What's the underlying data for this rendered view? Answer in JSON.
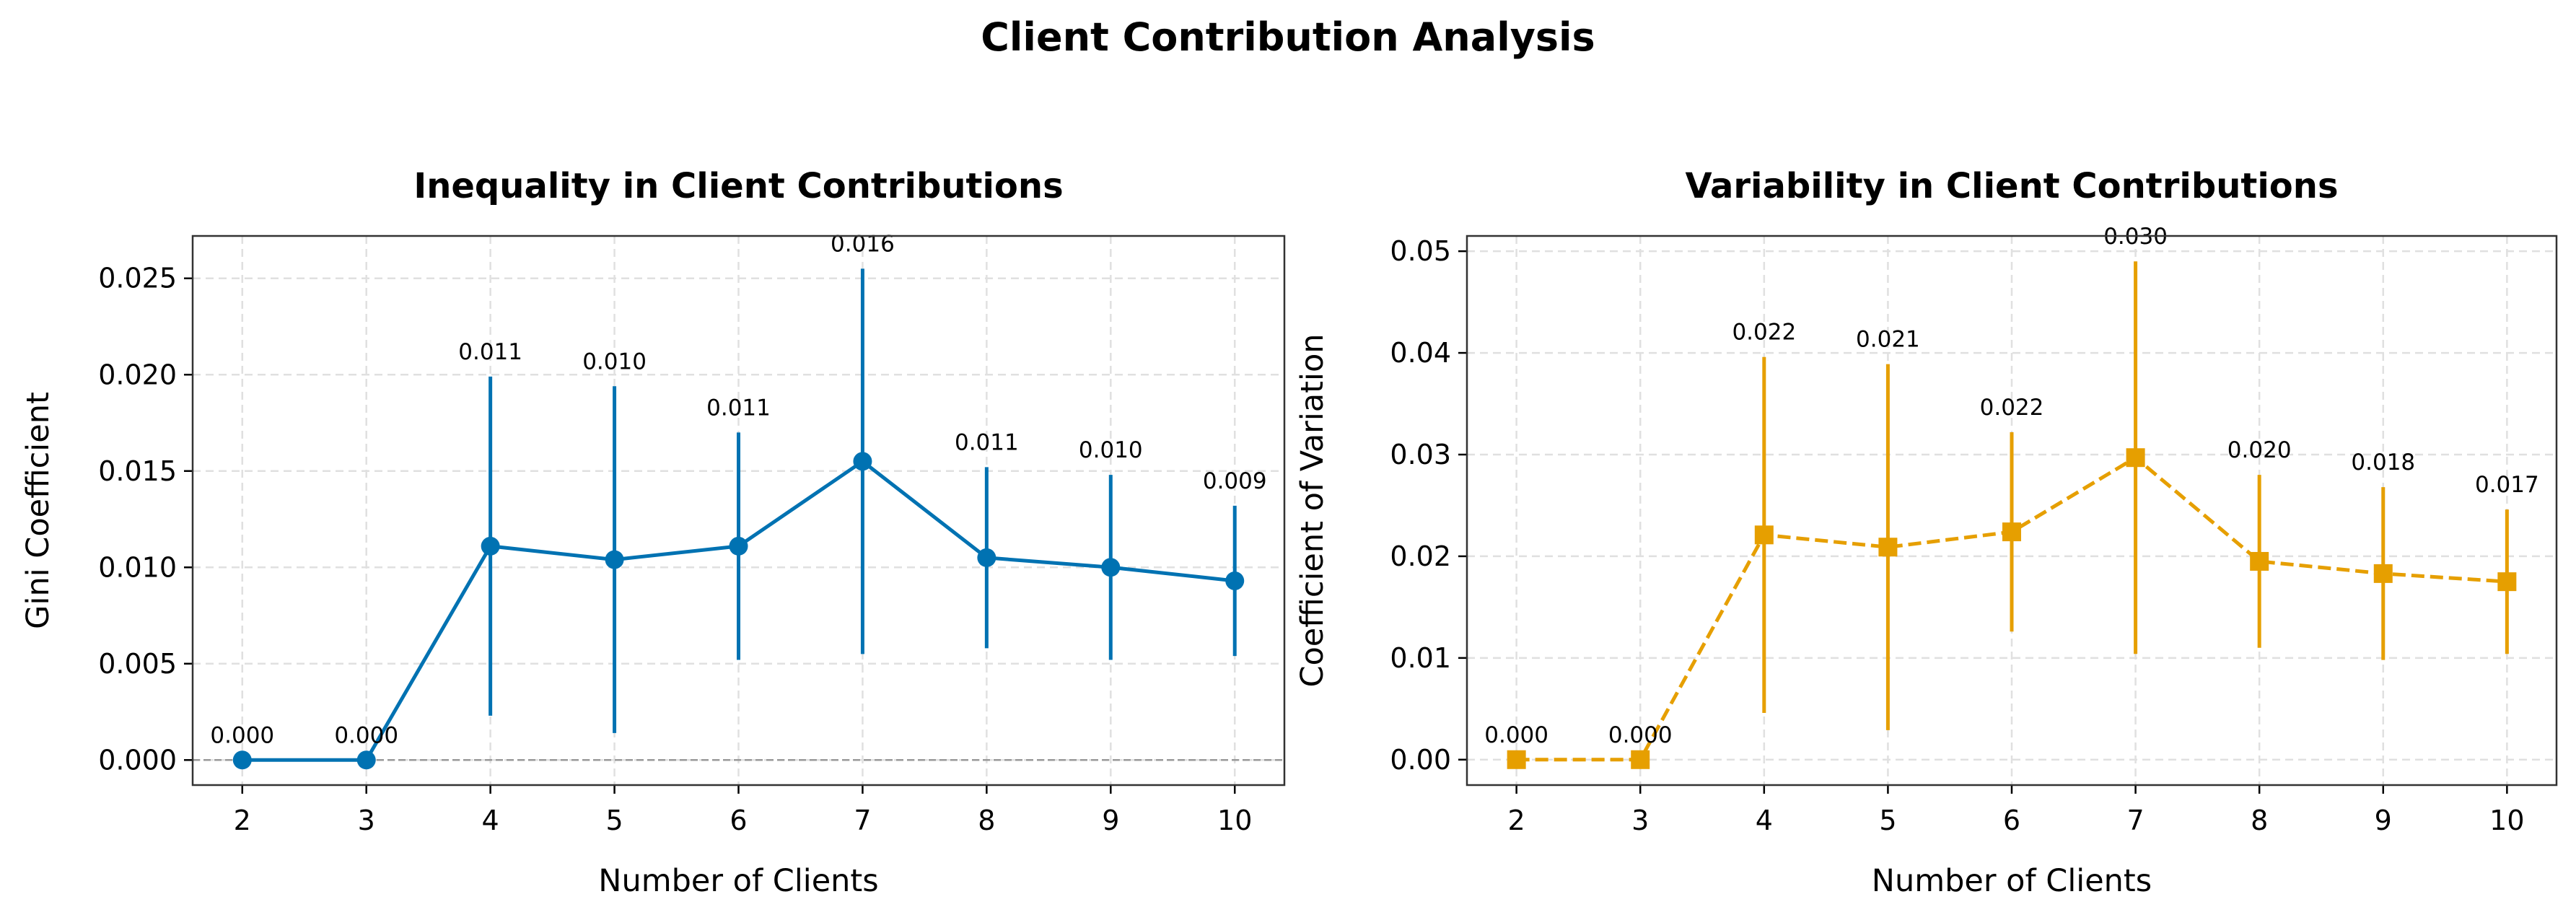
{
  "suptitle": "Client Contribution Analysis",
  "colors": {
    "gini": "#0072b2",
    "cv": "#e69f00",
    "grid": "#e0e0e0",
    "zero_line": "#999999"
  },
  "chart_data": [
    {
      "type": "line",
      "title": "Inequality in Client Contributions",
      "xlabel": "Number of Clients",
      "ylabel": "Gini Coefficient",
      "x": [
        2,
        3,
        4,
        5,
        6,
        7,
        8,
        9,
        10
      ],
      "xticks": [
        "2",
        "3",
        "4",
        "5",
        "6",
        "7",
        "8",
        "9",
        "10"
      ],
      "xlim": [
        1.6,
        10.4
      ],
      "ylim": [
        -0.0013,
        0.0272
      ],
      "yticks": [
        "0.000",
        "0.005",
        "0.010",
        "0.015",
        "0.020",
        "0.025"
      ],
      "grid": true,
      "zero_line": true,
      "series": [
        {
          "color": "#0072b2",
          "marker": "circle",
          "linestyle": "solid",
          "values": [
            0.0,
            0.0,
            0.0111,
            0.0104,
            0.0111,
            0.0155,
            0.0105,
            0.01,
            0.0093
          ],
          "errors": [
            0.0,
            0.0,
            0.0088,
            0.009,
            0.0059,
            0.01,
            0.0047,
            0.0048,
            0.0039
          ],
          "labels": [
            "0.000",
            "0.000",
            "0.011",
            "0.010",
            "0.011",
            "0.016",
            "0.011",
            "0.010",
            "0.009"
          ]
        }
      ]
    },
    {
      "type": "line",
      "title": "Variability in Client Contributions",
      "xlabel": "Number of Clients",
      "ylabel": "Coefficient of Variation",
      "x": [
        2,
        3,
        4,
        5,
        6,
        7,
        8,
        9,
        10
      ],
      "xticks": [
        "2",
        "3",
        "4",
        "5",
        "6",
        "7",
        "8",
        "9",
        "10"
      ],
      "xlim": [
        1.6,
        10.4
      ],
      "ylim": [
        -0.0025,
        0.0515
      ],
      "yticks": [
        "0.00",
        "0.01",
        "0.02",
        "0.03",
        "0.04",
        "0.05"
      ],
      "grid": true,
      "zero_line": false,
      "series": [
        {
          "color": "#e69f00",
          "marker": "square",
          "linestyle": "dashed",
          "values": [
            0.0,
            0.0,
            0.0221,
            0.0209,
            0.0224,
            0.0297,
            0.0195,
            0.0183,
            0.0175
          ],
          "errors": [
            0.0,
            0.0,
            0.0175,
            0.018,
            0.0098,
            0.0193,
            0.0085,
            0.0085,
            0.0071
          ],
          "labels": [
            "0.000",
            "0.000",
            "0.022",
            "0.021",
            "0.022",
            "0.030",
            "0.020",
            "0.018",
            "0.017"
          ]
        }
      ]
    }
  ]
}
